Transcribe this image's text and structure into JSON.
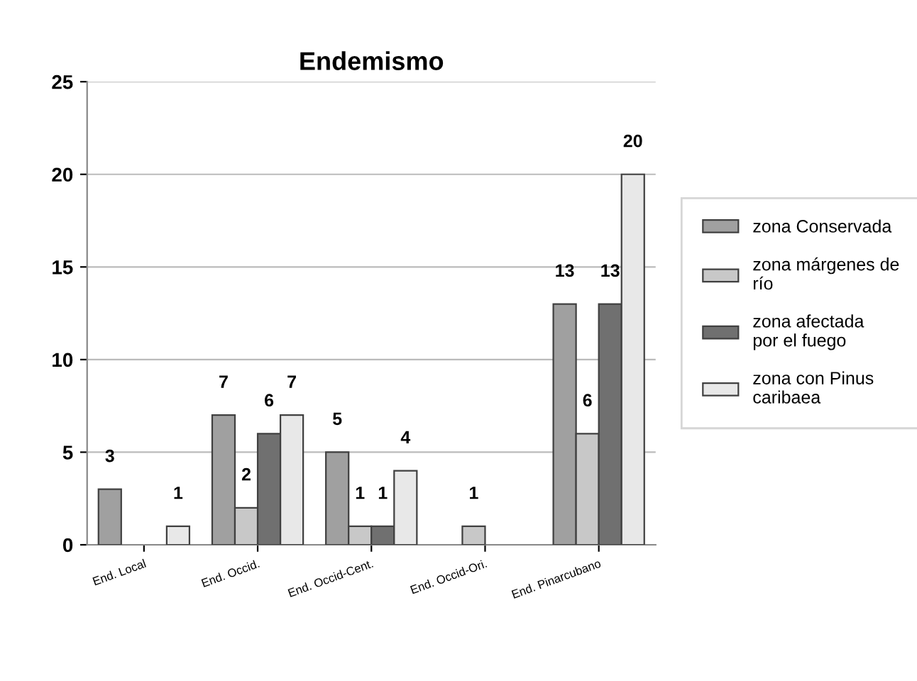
{
  "chart_data": {
    "type": "bar",
    "title": "Endemismo",
    "categories": [
      "End. Local",
      "End. Occid.",
      "End. Occid-Cent.",
      "End. Occid-Ori.",
      "End. Pinarcubano"
    ],
    "series": [
      {
        "name": "zona Conservada",
        "color": "#a0a0a0",
        "values": [
          3,
          7,
          5,
          null,
          13
        ],
        "value_labels": [
          "3",
          "7",
          "5",
          null,
          "13"
        ]
      },
      {
        "name": "zona márgenes de río",
        "color": "#c8c8c8",
        "values": [
          null,
          2,
          1,
          1,
          6
        ],
        "value_labels": [
          null,
          "2",
          "1",
          "1",
          "6"
        ]
      },
      {
        "name": "zona afectada por el fuego",
        "color": "#707070",
        "values": [
          null,
          6,
          1,
          null,
          13
        ],
        "value_labels": [
          null,
          "6",
          "1",
          null,
          "13"
        ]
      },
      {
        "name": "zona con Pinus caribaea",
        "color": "#e8e8e8",
        "values": [
          1,
          7,
          4,
          null,
          20
        ],
        "value_labels": [
          "1",
          "7",
          "4",
          null,
          "20"
        ]
      }
    ],
    "ylim": [
      0,
      25
    ],
    "yticks": [
      0,
      5,
      10,
      15,
      20,
      25
    ],
    "grid": "y",
    "legend": "right"
  }
}
